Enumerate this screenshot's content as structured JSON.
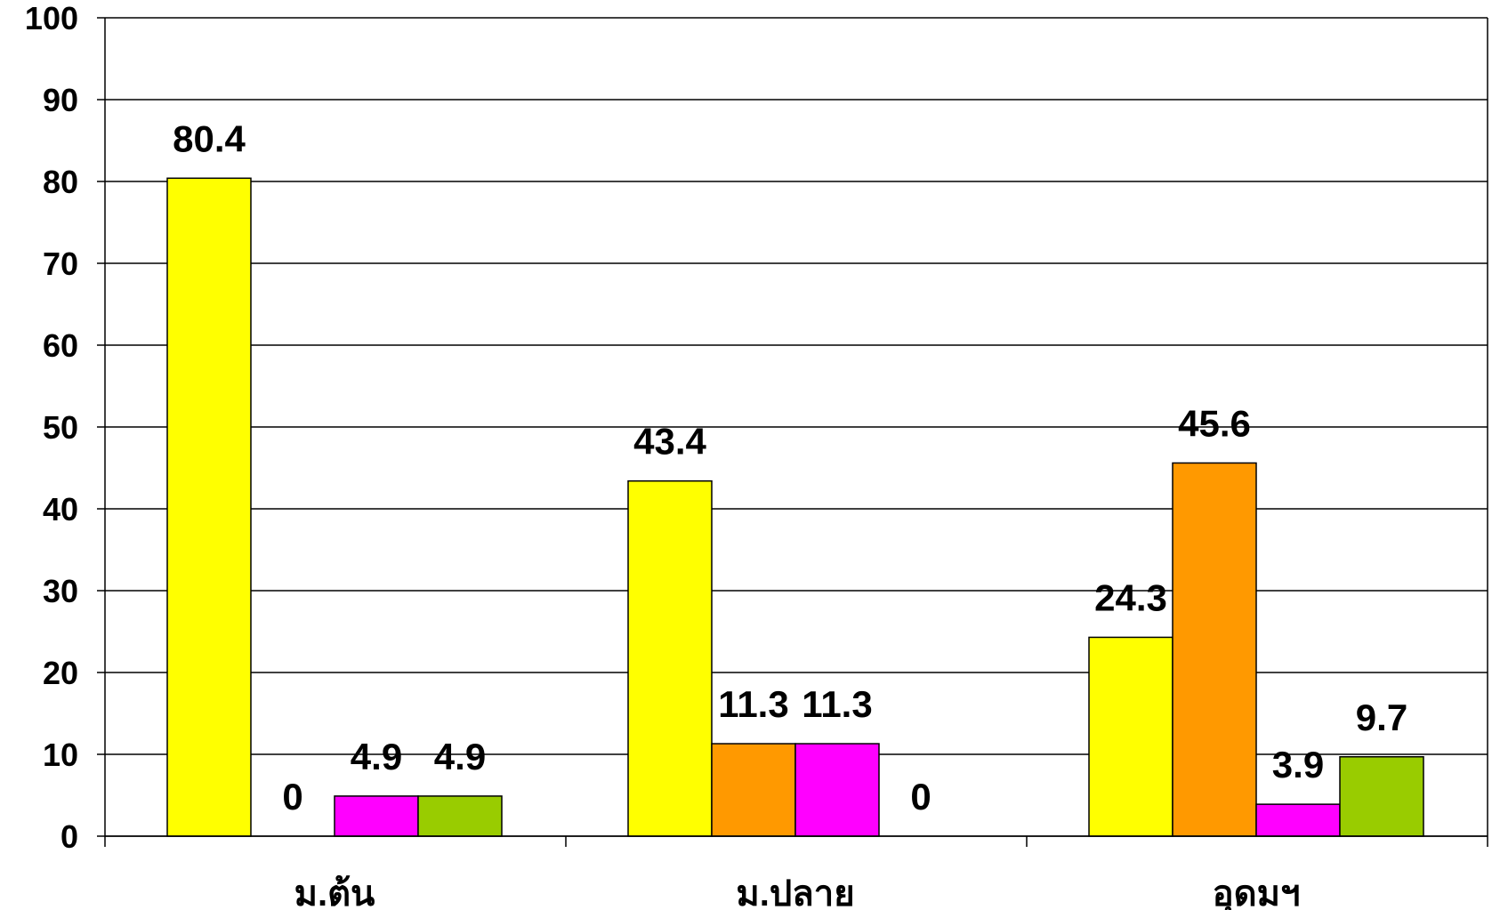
{
  "chart_data": {
    "type": "bar",
    "categories": [
      "ม.ต้น",
      "ม.ปลาย",
      "อุดมฯ"
    ],
    "series": [
      {
        "values": [
          80.4,
          43.4,
          24.3
        ],
        "color": "#ffff00"
      },
      {
        "values": [
          0,
          11.3,
          45.6
        ],
        "color": "#ff9900"
      },
      {
        "values": [
          4.9,
          11.3,
          3.9
        ],
        "color": "#ff00ff"
      },
      {
        "values": [
          4.9,
          0,
          9.7
        ],
        "color": "#99cc00"
      }
    ],
    "data_labels": [
      [
        "80.4",
        "43.4",
        "24.3"
      ],
      [
        "0",
        "11.3",
        "45.6"
      ],
      [
        "4.9",
        "11.3",
        "3.9"
      ],
      [
        "4.9",
        "0",
        "9.7"
      ]
    ],
    "ylim": [
      0,
      100
    ],
    "yticks": [
      "0",
      "10",
      "20",
      "30",
      "40",
      "50",
      "60",
      "70",
      "80",
      "90",
      "100"
    ],
    "grid": true,
    "legend": "none"
  }
}
